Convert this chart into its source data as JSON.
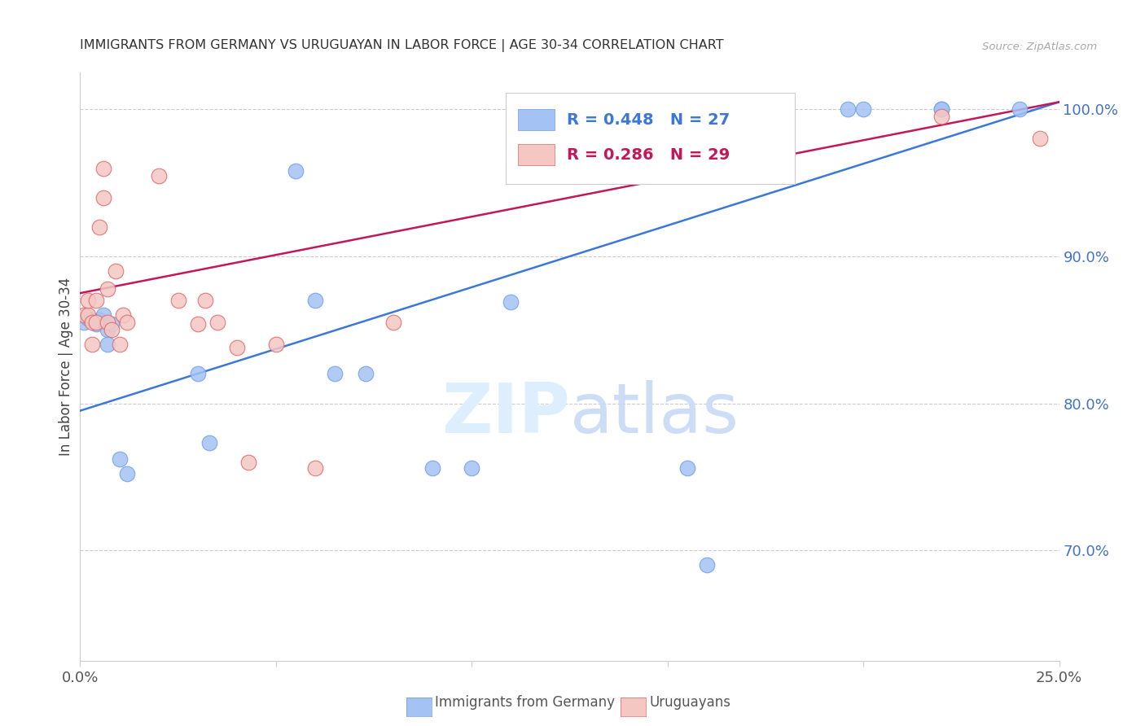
{
  "title": "IMMIGRANTS FROM GERMANY VS URUGUAYAN IN LABOR FORCE | AGE 30-34 CORRELATION CHART",
  "source": "Source: ZipAtlas.com",
  "ylabel": "In Labor Force | Age 30-34",
  "yticks_vals": [
    0.7,
    0.8,
    0.9,
    1.0
  ],
  "ytick_labels": [
    "70.0%",
    "80.0%",
    "90.0%",
    "100.0%"
  ],
  "legend_blue_text": "R = 0.448   N = 27",
  "legend_pink_text": "R = 0.286   N = 29",
  "legend_label_blue": "Immigrants from Germany",
  "legend_label_pink": "Uruguayans",
  "blue_scatter_color": "#a4c2f4",
  "pink_scatter_color": "#f4c7c3",
  "blue_edge_color": "#6d9eeb",
  "pink_edge_color": "#e06666",
  "blue_line_color": "#3c78d8",
  "pink_line_color": "#c2185b",
  "blue_legend_text_color": "#3c78d8",
  "pink_legend_text_color": "#c2185b",
  "right_axis_color": "#4472c4",
  "grid_color": "#cccccc",
  "watermark_color": "#ddeeff",
  "xmin": 0.0,
  "xmax": 0.25,
  "ymin": 0.625,
  "ymax": 1.025,
  "blue_line_x0": 0.0,
  "blue_line_y0": 0.795,
  "blue_line_x1": 0.25,
  "blue_line_y1": 1.005,
  "pink_line_x0": 0.0,
  "pink_line_y0": 0.875,
  "pink_line_x1": 0.25,
  "pink_line_y1": 1.005,
  "blue_x": [
    0.001,
    0.002,
    0.003,
    0.004,
    0.005,
    0.006,
    0.007,
    0.007,
    0.008,
    0.01,
    0.012,
    0.03,
    0.033,
    0.055,
    0.06,
    0.065,
    0.073,
    0.09,
    0.1,
    0.11,
    0.155,
    0.16,
    0.196,
    0.2,
    0.22,
    0.22,
    0.24
  ],
  "blue_y": [
    0.855,
    0.858,
    0.856,
    0.854,
    0.857,
    0.86,
    0.85,
    0.84,
    0.854,
    0.762,
    0.752,
    0.82,
    0.773,
    0.958,
    0.87,
    0.82,
    0.82,
    0.756,
    0.756,
    0.869,
    0.756,
    0.69,
    1.0,
    1.0,
    1.0,
    1.0,
    1.0
  ],
  "pink_x": [
    0.001,
    0.002,
    0.002,
    0.003,
    0.003,
    0.004,
    0.004,
    0.005,
    0.006,
    0.006,
    0.007,
    0.007,
    0.008,
    0.009,
    0.01,
    0.011,
    0.012,
    0.02,
    0.025,
    0.03,
    0.032,
    0.035,
    0.04,
    0.043,
    0.05,
    0.06,
    0.08,
    0.22,
    0.245
  ],
  "pink_y": [
    0.86,
    0.86,
    0.87,
    0.855,
    0.84,
    0.87,
    0.855,
    0.92,
    0.94,
    0.96,
    0.878,
    0.855,
    0.85,
    0.89,
    0.84,
    0.86,
    0.855,
    0.955,
    0.87,
    0.854,
    0.87,
    0.855,
    0.838,
    0.76,
    0.84,
    0.756,
    0.855,
    0.995,
    0.98
  ]
}
